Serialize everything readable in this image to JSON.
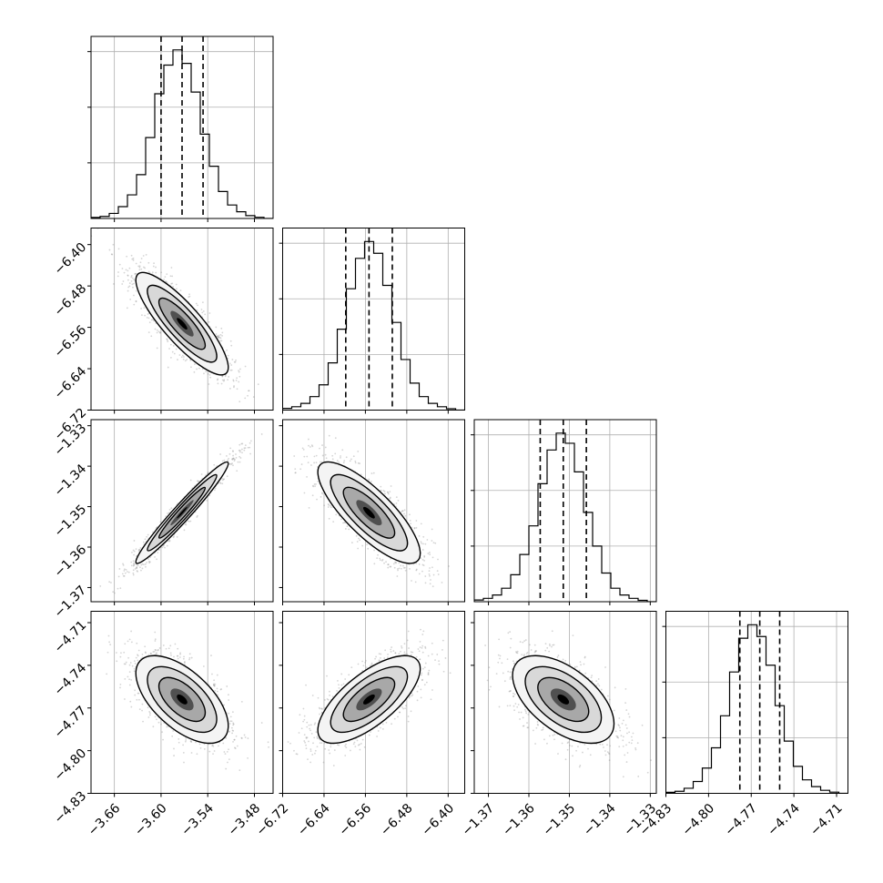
{
  "chart_data": {
    "type": "corner",
    "grid": true,
    "parameters": [
      {
        "ticks": [
          -3.66,
          -3.6,
          -3.54,
          -3.48
        ],
        "tick_labels": [
          "−3.66",
          "−3.60",
          "−3.54",
          "−3.48"
        ],
        "range": [
          -3.69,
          -3.456
        ],
        "mean": -3.573,
        "std": 0.027,
        "quantiles": [
          -3.6,
          -3.573,
          -3.546
        ],
        "histogram": [
          0.006,
          0.012,
          0.03,
          0.07,
          0.14,
          0.26,
          0.48,
          0.74,
          0.91,
          1.0,
          0.92,
          0.75,
          0.5,
          0.31,
          0.16,
          0.08,
          0.04,
          0.017,
          0.007,
          0.0
        ]
      },
      {
        "ticks": [
          -6.72,
          -6.64,
          -6.56,
          -6.48,
          -6.4
        ],
        "tick_labels": [
          "−6.72",
          "−6.64",
          "−6.56",
          "−6.48",
          "−6.40"
        ],
        "range": [
          -6.72,
          -6.368
        ],
        "mean": -6.553,
        "std": 0.045,
        "quantiles": [
          -6.598,
          -6.553,
          -6.508
        ],
        "histogram": [
          0.01,
          0.02,
          0.04,
          0.08,
          0.15,
          0.28,
          0.48,
          0.72,
          0.9,
          1.0,
          0.93,
          0.74,
          0.52,
          0.3,
          0.16,
          0.08,
          0.04,
          0.02,
          0.008,
          0.0
        ]
      },
      {
        "ticks": [
          -1.37,
          -1.36,
          -1.35,
          -1.34,
          -1.33
        ],
        "tick_labels": [
          "−1.37",
          "−1.36",
          "−1.35",
          "−1.34",
          "−1.33"
        ],
        "range": [
          -1.3735,
          -1.3285
        ],
        "mean": -1.3515,
        "std": 0.0057,
        "quantiles": [
          -1.3572,
          -1.3515,
          -1.3458
        ],
        "histogram": [
          0.01,
          0.02,
          0.04,
          0.08,
          0.16,
          0.28,
          0.45,
          0.7,
          0.9,
          1.0,
          0.94,
          0.77,
          0.53,
          0.33,
          0.17,
          0.08,
          0.04,
          0.02,
          0.008,
          0.0
        ]
      },
      {
        "ticks": [
          -4.83,
          -4.8,
          -4.77,
          -4.74,
          -4.71
        ],
        "tick_labels": [
          "−4.83",
          "−4.80",
          "−4.77",
          "−4.74",
          "−4.71"
        ],
        "range": [
          -4.83,
          -4.702
        ],
        "mean": -4.764,
        "std": 0.014,
        "quantiles": [
          -4.778,
          -4.764,
          -4.75
        ],
        "histogram": [
          0.006,
          0.012,
          0.03,
          0.07,
          0.15,
          0.27,
          0.46,
          0.72,
          0.92,
          1.0,
          0.93,
          0.76,
          0.52,
          0.31,
          0.16,
          0.08,
          0.04,
          0.018,
          0.007,
          0.0
        ]
      }
    ],
    "correlations": [
      [
        1.0,
        -0.85,
        0.97,
        -0.6
      ],
      [
        -0.85,
        1.0,
        -0.8,
        0.7
      ],
      [
        0.97,
        -0.8,
        1.0,
        -0.55
      ],
      [
        -0.6,
        0.7,
        -0.55,
        1.0
      ]
    ],
    "contour_levels_sigma": [
      0.5,
      1.0,
      1.5,
      2.0
    ]
  }
}
